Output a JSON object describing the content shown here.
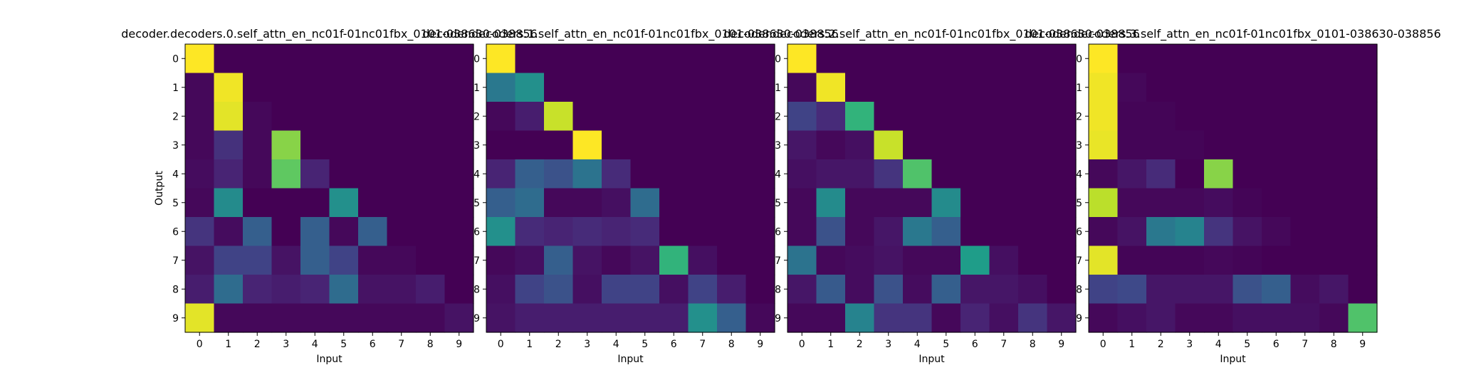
{
  "colormap": "viridis",
  "chart_data": [
    {
      "type": "heatmap",
      "title": "decoder.decoders.0.self_attn_en_nc01f-01nc01fbx_0101-038630-038856",
      "xlabel": "Input",
      "ylabel": "Output",
      "x_ticks": [
        "0",
        "1",
        "2",
        "3",
        "4",
        "5",
        "6",
        "7",
        "8",
        "9"
      ],
      "y_ticks": [
        "0",
        "1",
        "2",
        "3",
        "4",
        "5",
        "6",
        "7",
        "8",
        "9"
      ],
      "values": [
        [
          1.0,
          0.0,
          0.0,
          0.0,
          0.0,
          0.0,
          0.0,
          0.0,
          0.0,
          0.0
        ],
        [
          0.02,
          0.98,
          0.0,
          0.0,
          0.0,
          0.0,
          0.0,
          0.0,
          0.0,
          0.0
        ],
        [
          0.02,
          0.96,
          0.02,
          0.0,
          0.0,
          0.0,
          0.0,
          0.0,
          0.0,
          0.0
        ],
        [
          0.02,
          0.14,
          0.02,
          0.82,
          0.0,
          0.0,
          0.0,
          0.0,
          0.0,
          0.0
        ],
        [
          0.03,
          0.1,
          0.02,
          0.75,
          0.1,
          0.0,
          0.0,
          0.0,
          0.0,
          0.0
        ],
        [
          0.02,
          0.48,
          0.0,
          0.0,
          0.0,
          0.5,
          0.0,
          0.0,
          0.0,
          0.0
        ],
        [
          0.15,
          0.03,
          0.3,
          0.0,
          0.3,
          0.02,
          0.3,
          0.0,
          0.0,
          0.0
        ],
        [
          0.05,
          0.2,
          0.2,
          0.05,
          0.3,
          0.2,
          0.02,
          0.02,
          0.0,
          0.0
        ],
        [
          0.08,
          0.35,
          0.1,
          0.08,
          0.1,
          0.35,
          0.05,
          0.05,
          0.08,
          0.0
        ],
        [
          0.96,
          0.02,
          0.02,
          0.02,
          0.02,
          0.02,
          0.02,
          0.02,
          0.02,
          0.05
        ]
      ]
    },
    {
      "type": "heatmap",
      "title": "decoder.decoders.1.self_attn_en_nc01f-01nc01fbx_0101-038630-038856",
      "xlabel": "Input",
      "ylabel": "",
      "x_ticks": [
        "0",
        "1",
        "2",
        "3",
        "4",
        "5",
        "6",
        "7",
        "8",
        "9"
      ],
      "y_ticks": [
        "0",
        "1",
        "2",
        "3",
        "4",
        "5",
        "6",
        "7",
        "8",
        "9"
      ],
      "values": [
        [
          1.0,
          0.0,
          0.0,
          0.0,
          0.0,
          0.0,
          0.0,
          0.0,
          0.0,
          0.0
        ],
        [
          0.4,
          0.5,
          0.0,
          0.0,
          0.0,
          0.0,
          0.0,
          0.0,
          0.0,
          0.0
        ],
        [
          0.02,
          0.08,
          0.92,
          0.0,
          0.0,
          0.0,
          0.0,
          0.0,
          0.0,
          0.0
        ],
        [
          0.0,
          0.0,
          0.0,
          1.0,
          0.0,
          0.0,
          0.0,
          0.0,
          0.0,
          0.0
        ],
        [
          0.1,
          0.3,
          0.25,
          0.38,
          0.12,
          0.0,
          0.0,
          0.0,
          0.0,
          0.0
        ],
        [
          0.3,
          0.35,
          0.02,
          0.02,
          0.04,
          0.35,
          0.0,
          0.0,
          0.0,
          0.0
        ],
        [
          0.5,
          0.12,
          0.1,
          0.12,
          0.1,
          0.12,
          0.0,
          0.0,
          0.0,
          0.0
        ],
        [
          0.02,
          0.04,
          0.3,
          0.05,
          0.02,
          0.05,
          0.65,
          0.04,
          0.0,
          0.0
        ],
        [
          0.04,
          0.2,
          0.25,
          0.04,
          0.2,
          0.2,
          0.04,
          0.2,
          0.08,
          0.0
        ],
        [
          0.05,
          0.08,
          0.08,
          0.08,
          0.08,
          0.08,
          0.08,
          0.5,
          0.3,
          0.02
        ]
      ]
    },
    {
      "type": "heatmap",
      "title": "decoder.decoders.2.self_attn_en_nc01f-01nc01fbx_0101-038630-038856",
      "xlabel": "Input",
      "ylabel": "",
      "x_ticks": [
        "0",
        "1",
        "2",
        "3",
        "4",
        "5",
        "6",
        "7",
        "8",
        "9"
      ],
      "y_ticks": [
        "0",
        "1",
        "2",
        "3",
        "4",
        "5",
        "6",
        "7",
        "8",
        "9"
      ],
      "values": [
        [
          1.0,
          0.0,
          0.0,
          0.0,
          0.0,
          0.0,
          0.0,
          0.0,
          0.0,
          0.0
        ],
        [
          0.02,
          0.98,
          0.0,
          0.0,
          0.0,
          0.0,
          0.0,
          0.0,
          0.0,
          0.0
        ],
        [
          0.2,
          0.12,
          0.65,
          0.0,
          0.0,
          0.0,
          0.0,
          0.0,
          0.0,
          0.0
        ],
        [
          0.06,
          0.02,
          0.04,
          0.92,
          0.0,
          0.0,
          0.0,
          0.0,
          0.0,
          0.0
        ],
        [
          0.04,
          0.06,
          0.06,
          0.15,
          0.72,
          0.0,
          0.0,
          0.0,
          0.0,
          0.0
        ],
        [
          0.02,
          0.48,
          0.02,
          0.02,
          0.02,
          0.48,
          0.0,
          0.0,
          0.0,
          0.0
        ],
        [
          0.02,
          0.25,
          0.02,
          0.06,
          0.4,
          0.3,
          0.0,
          0.0,
          0.0,
          0.0
        ],
        [
          0.38,
          0.02,
          0.03,
          0.05,
          0.02,
          0.02,
          0.55,
          0.04,
          0.0,
          0.0
        ],
        [
          0.06,
          0.28,
          0.03,
          0.25,
          0.03,
          0.3,
          0.06,
          0.06,
          0.04,
          0.0
        ],
        [
          0.02,
          0.02,
          0.45,
          0.15,
          0.15,
          0.02,
          0.1,
          0.04,
          0.15,
          0.06
        ]
      ]
    },
    {
      "type": "heatmap",
      "title": "decoder.decoders.3.self_attn_en_nc01f-01nc01fbx_0101-038630-038856",
      "xlabel": "Input",
      "ylabel": "",
      "x_ticks": [
        "0",
        "1",
        "2",
        "3",
        "4",
        "5",
        "6",
        "7",
        "8",
        "9"
      ],
      "y_ticks": [
        "0",
        "1",
        "2",
        "3",
        "4",
        "5",
        "6",
        "7",
        "8",
        "9"
      ],
      "values": [
        [
          1.0,
          0.0,
          0.0,
          0.0,
          0.0,
          0.0,
          0.0,
          0.0,
          0.0,
          0.0
        ],
        [
          0.98,
          0.02,
          0.0,
          0.0,
          0.0,
          0.0,
          0.0,
          0.0,
          0.0,
          0.0
        ],
        [
          0.98,
          0.01,
          0.01,
          0.0,
          0.0,
          0.0,
          0.0,
          0.0,
          0.0,
          0.0
        ],
        [
          0.97,
          0.01,
          0.01,
          0.01,
          0.0,
          0.0,
          0.0,
          0.0,
          0.0,
          0.0
        ],
        [
          0.02,
          0.06,
          0.12,
          0.0,
          0.82,
          0.0,
          0.0,
          0.0,
          0.0,
          0.0
        ],
        [
          0.9,
          0.02,
          0.02,
          0.02,
          0.03,
          0.01,
          0.0,
          0.0,
          0.0,
          0.0
        ],
        [
          0.02,
          0.05,
          0.4,
          0.45,
          0.15,
          0.05,
          0.02,
          0.0,
          0.0,
          0.0
        ],
        [
          0.96,
          0.01,
          0.01,
          0.01,
          0.02,
          0.01,
          0.0,
          0.0,
          0.0,
          0.0
        ],
        [
          0.2,
          0.22,
          0.06,
          0.06,
          0.06,
          0.25,
          0.3,
          0.03,
          0.06,
          0.0
        ],
        [
          0.02,
          0.04,
          0.06,
          0.02,
          0.02,
          0.04,
          0.04,
          0.04,
          0.02,
          0.72
        ]
      ]
    }
  ]
}
